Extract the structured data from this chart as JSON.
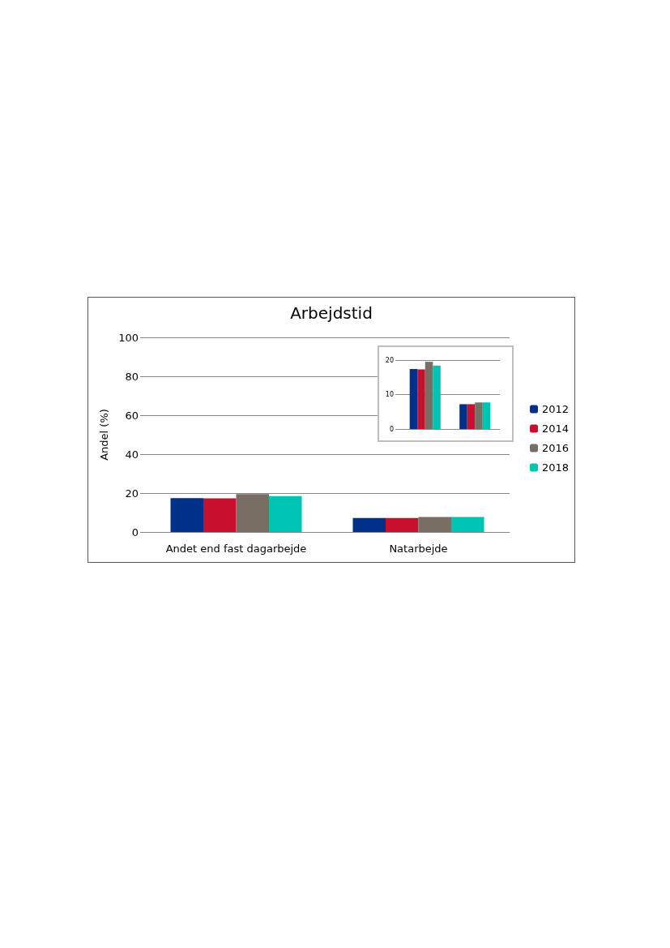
{
  "chart_data": [
    {
      "type": "bar",
      "title": "Arbejdstid",
      "ylabel": "Andel (%)",
      "categories": [
        "Andet end fast dagarbejde",
        "Natarbejde"
      ],
      "series": [
        {
          "name": "2012",
          "color": "#003087",
          "values": [
            17.4,
            7.2
          ]
        },
        {
          "name": "2014",
          "color": "#c8102e",
          "values": [
            17.3,
            7.2
          ]
        },
        {
          "name": "2016",
          "color": "#786e64",
          "values": [
            19.5,
            7.7
          ]
        },
        {
          "name": "2018",
          "color": "#00c4b3",
          "values": [
            18.4,
            7.7
          ]
        }
      ],
      "ylim": [
        0,
        100
      ],
      "yticks": [
        0,
        20,
        40,
        60,
        80,
        100
      ],
      "grid": "y",
      "legend": "right"
    },
    {
      "type": "bar",
      "categories": [
        null,
        null
      ],
      "series": [
        {
          "color": "#003087",
          "values": [
            17.4,
            7.2
          ]
        },
        {
          "color": "#c8102e",
          "values": [
            17.3,
            7.2
          ]
        },
        {
          "color": "#786e64",
          "values": [
            19.5,
            7.7
          ]
        },
        {
          "color": "#00c4b3",
          "values": [
            18.4,
            7.7
          ]
        }
      ],
      "ylim": [
        0,
        20
      ],
      "yticks": [
        0,
        10,
        20
      ],
      "grid": "y",
      "tick_labels": "y"
    }
  ]
}
